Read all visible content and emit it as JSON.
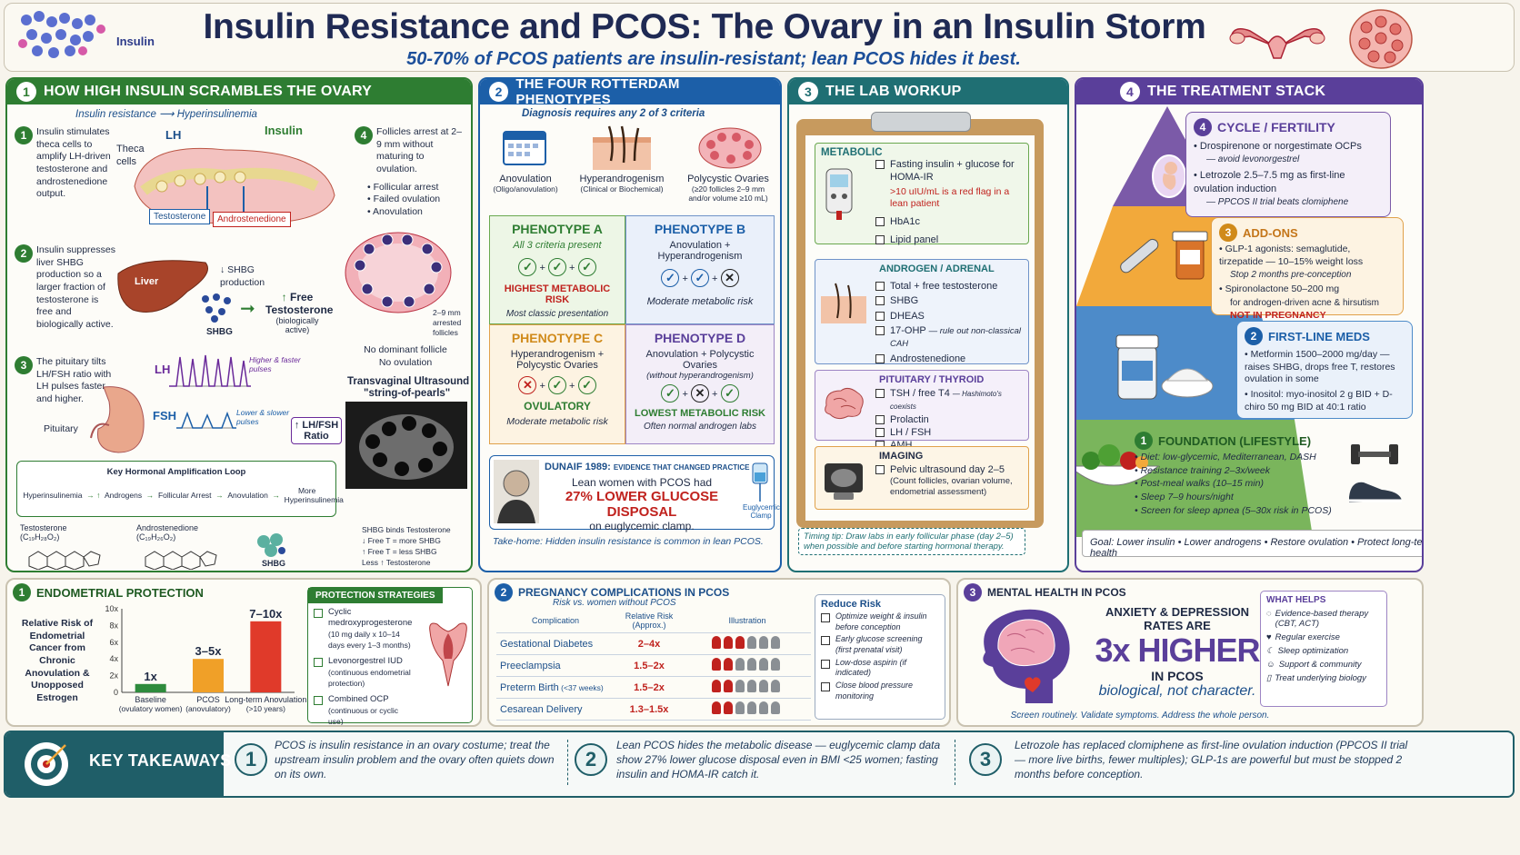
{
  "header": {
    "logo_label": "Insulin",
    "title": "Insulin Resistance and PCOS: The Ovary in an Insulin Storm",
    "subtitle": "50-70% of PCOS patients are insulin-resistant; lean PCOS hides it best."
  },
  "section1": {
    "num": "1",
    "title": "HOW HIGH INSULIN SCRAMBLES THE OVARY",
    "flow_a": "Insulin resistance",
    "flow_b": "Hyperinsulinemia",
    "step1_num": "1",
    "step1": "Insulin stimulates theca cells to amplify LH-driven testosterone and androstenedione output.",
    "lbl_lh": "LH",
    "lbl_insulin": "Insulin",
    "lbl_theca": "Theca cells",
    "lbl_testosterone": "Testosterone",
    "lbl_androstenedione": "Androstenedione",
    "step2_num": "2",
    "step2": "Insulin suppresses liver SHBG production so a larger fraction of testosterone is free and biologically active.",
    "lbl_liver": "Liver",
    "lbl_shbg_prod": "↓ SHBG production",
    "lbl_shbg": "SHBG",
    "lbl_free_t": "Free Testosterone",
    "lbl_free_t_sub": "(biologically active)",
    "step3_num": "3",
    "step3": "The pituitary tilts LH/FSH ratio with LH pulses faster and higher.",
    "lbl_pituitary": "Pituitary",
    "lbl_lh2": "LH",
    "lbl_fsh": "FSH",
    "lbl_lh_pulses": "Higher & faster pulses",
    "lbl_fsh_pulses": "Lower & slower pulses",
    "lbl_ratio": "↑ LH/FSH Ratio",
    "step4_num": "4",
    "step4": "Follicles arrest at 2–9 mm without maturing to ovulation.",
    "step4_b1": "Follicular arrest",
    "step4_b2": "Failed ovulation",
    "step4_b3": "Anovulation",
    "lbl_follicles": "2–9 mm arrested follicles",
    "lbl_no_dom": "No dominant follicle",
    "lbl_no_ov": "No ovulation",
    "lbl_us": "Transvaginal Ultrasound",
    "lbl_string": "\"string-of-pearls\"",
    "loop_title": "Key Hormonal Amplification Loop",
    "loop_1": "Hyperinsulinemia",
    "loop_2": "Androgens",
    "loop_3": "Follicular Arrest",
    "loop_4": "Anovulation",
    "loop_5": "More Hyperinsulinemia",
    "mol1": "Testosterone",
    "mol1_f": "(C₁₉H₂₈O₂)",
    "mol2": "Androstenedione",
    "mol2_f": "(C₁₉H₂₆O₂)",
    "shbg_note1": "SHBG binds Testosterone",
    "shbg_note2": "↓ Free T = more SHBG",
    "shbg_note3": "↑ Free T = less SHBG",
    "shbg_note4": "Less ↑ Testosterone",
    "shbg_lbl": "SHBG"
  },
  "section2": {
    "num": "2",
    "title": "THE FOUR ROTTERDAM PHENOTYPES",
    "criteria": "Diagnosis requires any 2 of 3 criteria",
    "c1": "Anovulation",
    "c1s": "(Oligo/anovulation)",
    "c2": "Hyperandrogenism",
    "c2s": "(Clinical or Biochemical)",
    "c3": "Polycystic Ovaries",
    "c3s": "(≥20 follicles 2–9 mm and/or volume ≥10 mL)",
    "a_title": "PHENOTYPE A",
    "a_sub": "All 3 criteria present",
    "a_risk": "HIGHEST METABOLIC RISK",
    "a_note": "Most classic presentation",
    "b_title": "PHENOTYPE B",
    "b_sub": "Anovulation + Hyperandrogenism",
    "b_risk": "Moderate metabolic risk",
    "c_title": "PHENOTYPE C",
    "c_sub": "Hyperandrogenism + Polycystic Ovaries",
    "c_label": "OVULATORY",
    "c_risk": "Moderate metabolic risk",
    "d_title": "PHENOTYPE D",
    "d_sub": "Anovulation + Polycystic Ovaries",
    "d_sub2": "(without hyperandrogenism)",
    "d_risk": "LOWEST METABOLIC RISK",
    "d_note": "Often normal androgen labs",
    "dunaif_head": "DUNAIF 1989:",
    "dunaif_tag": "EVIDENCE THAT CHANGED PRACTICE",
    "dunaif_1": "Lean women with PCOS had",
    "dunaif_2": "27% LOWER GLUCOSE DISPOSAL",
    "dunaif_3": "on euglycemic clamp.",
    "clamp": "Euglycemic Clamp",
    "takehome": "Take-home: Hidden insulin resistance is common in lean PCOS."
  },
  "section3": {
    "num": "3",
    "title": "THE LAB WORKUP",
    "metabolic": "METABOLIC",
    "m1": "Fasting insulin + glucose for HOMA-IR",
    "m1_flag": ">10 uIU/mL is a red flag in a lean patient",
    "m2": "HbA1c",
    "m3": "Lipid panel",
    "androgen": "ANDROGEN / ADRENAL",
    "a1": "Total + free testosterone",
    "a2": "SHBG",
    "a3": "DHEAS",
    "a4": "17-OHP",
    "a4_note": "— rule out non-classical CAH",
    "a5": "Androstenedione",
    "pituitary": "PITUITARY / THYROID",
    "p1": "TSH / free T4",
    "p1_note": "— Hashimoto's coexists",
    "p2": "Prolactin",
    "p3": "LH / FSH",
    "p4": "AMH",
    "imaging": "IMAGING",
    "i1": "Pelvic ultrasound day 2–5",
    "i1_note": "(Count follicles, ovarian volume, endometrial assessment)",
    "timing": "Timing tip: Draw labs in early follicular phase (day 2–5) when possible and before starting hormonal therapy."
  },
  "section4": {
    "num": "4",
    "title": "THE TREATMENT STACK",
    "t4_num": "4",
    "t4_title": "CYCLE / FERTILITY",
    "t4_b1": "Drospirenone or norgestimate OCPs",
    "t4_b1n": "— avoid levonorgestrel",
    "t4_b2": "Letrozole 2.5–7.5 mg as first-line ovulation induction",
    "t4_b2n": "— PPCOS II trial beats clomiphene",
    "t3_num": "3",
    "t3_title": "ADD-ONS",
    "t3_b1": "GLP-1 agonists: semaglutide, tirzepatide — 10–15% weight loss",
    "t3_b1n": "Stop 2 months pre-conception",
    "t3_b2": "Spironolactone 50–200 mg",
    "t3_b2n": "for androgen-driven acne & hirsutism",
    "t3_b2r": "NOT IN PREGNANCY",
    "t2_num": "2",
    "t2_title": "FIRST-LINE MEDS",
    "t2_b1": "Metformin 1500–2000 mg/day — raises SHBG, drops free T, restores ovulation in some",
    "t2_b2": "Inositol: myo-inositol 2 g BID + D-chiro 50 mg BID at 40:1 ratio",
    "t1_num": "1",
    "t1_title": "FOUNDATION (LIFESTYLE)",
    "t1_b1": "Diet: low-glycemic, Mediterranean, DASH",
    "t1_b2": "Resistance training 2–3x/week",
    "t1_b3": "Post-meal walks (10–15 min)",
    "t1_b4": "Sleep 7–9 hours/night",
    "t1_b5": "Screen for sleep apnea (5–30x risk in PCOS)",
    "goal": "Goal: Lower insulin • Lower androgens • Restore ovulation • Protect long-term health"
  },
  "endometrial": {
    "num": "1",
    "title": "ENDOMETRIAL PROTECTION",
    "ylabel": "Relative Risk of Endometrial Cancer from Chronic Anovulation & Unopposed Estrogen",
    "strategies_title": "PROTECTION STRATEGIES",
    "s1": "Cyclic medroxyprogesterone",
    "s1n": "(10 mg daily x 10–14 days every 1–3 months)",
    "s2": "Levonorgestrel IUD",
    "s2n": "(continuous endometrial protection)",
    "s3": "Combined OCP",
    "s3n": "(continuous or cyclic use)"
  },
  "chart_data": {
    "type": "bar",
    "categories": [
      "Baseline (ovulatory women)",
      "PCOS (anovulatory)",
      "Long-term Anovulation (>10 years)"
    ],
    "category_short": [
      "Baseline",
      "PCOS",
      "Long-term Anovulation"
    ],
    "category_sub": [
      "(ovulatory women)",
      "(anovulatory)",
      "(>10 years)"
    ],
    "values": [
      1,
      4,
      8.5
    ],
    "data_labels": [
      "1x",
      "3–5x",
      "7–10x"
    ],
    "colors": [
      "#2e8b3d",
      "#f0a028",
      "#e03a2a"
    ],
    "yticks": [
      "0",
      "2x",
      "4x",
      "6x",
      "8x",
      "10x"
    ],
    "ylim": [
      0,
      10
    ],
    "ylabel": "Relative Risk of Endometrial Cancer from Chronic Anovulation & Unopposed Estrogen"
  },
  "pregnancy": {
    "num": "2",
    "title": "PREGNANCY COMPLICATIONS IN PCOS",
    "sub": "Risk vs. women without PCOS",
    "col1": "Complication",
    "col2": "Relative Risk (Approx.)",
    "col3": "Illustration",
    "rows": [
      {
        "name": "Gestational Diabetes",
        "risk": "2–4x",
        "red": 3
      },
      {
        "name": "Preeclampsia",
        "risk": "1.5–2x",
        "red": 2
      },
      {
        "name": "Preterm Birth",
        "name_sub": "(<37 weeks)",
        "risk": "1.5–2x",
        "red": 2
      },
      {
        "name": "Cesarean Delivery",
        "risk": "1.3–1.5x",
        "red": 2
      }
    ],
    "reduce_title": "Reduce Risk",
    "r1": "Optimize weight & insulin before conception",
    "r2": "Early glucose screening (first prenatal visit)",
    "r3": "Low-dose aspirin (if indicated)",
    "r4": "Close blood pressure monitoring"
  },
  "mental": {
    "num": "3",
    "title": "MENTAL HEALTH IN PCOS",
    "l1": "ANXIETY & DEPRESSION",
    "l2": "RATES ARE",
    "big": "3x HIGHER",
    "l3": "IN PCOS",
    "l4": "biological, not character.",
    "foot": "Screen routinely. Validate symptoms. Address the whole person.",
    "helps_title": "WHAT HELPS",
    "h1": "Evidence-based therapy (CBT, ACT)",
    "h2": "Regular exercise",
    "h3": "Sleep optimization",
    "h4": "Support & community",
    "h5": "Treat underlying biology"
  },
  "takeaways": {
    "title": "KEY TAKEAWAYS",
    "n1": "1",
    "t1": "PCOS is insulin resistance in an ovary costume; treat the upstream insulin problem and the ovary often quiets down on its own.",
    "n2": "2",
    "t2": "Lean PCOS hides the metabolic disease — euglycemic clamp data show 27% lower glucose disposal even in BMI <25 women; fasting insulin and HOMA-IR catch it.",
    "n3": "3",
    "t3": "Letrozole has replaced clomiphene as first-line ovulation induction (PPCOS II trial — more live births, fewer multiples); GLP-1s are powerful but must be stopped 2 months before conception."
  },
  "colors": {
    "green": "#2e7d32",
    "blue": "#1c5fa8",
    "teal": "#1f6f73",
    "purple": "#5a3f9a",
    "navy": "#1f2a44",
    "red": "#c0221e"
  }
}
